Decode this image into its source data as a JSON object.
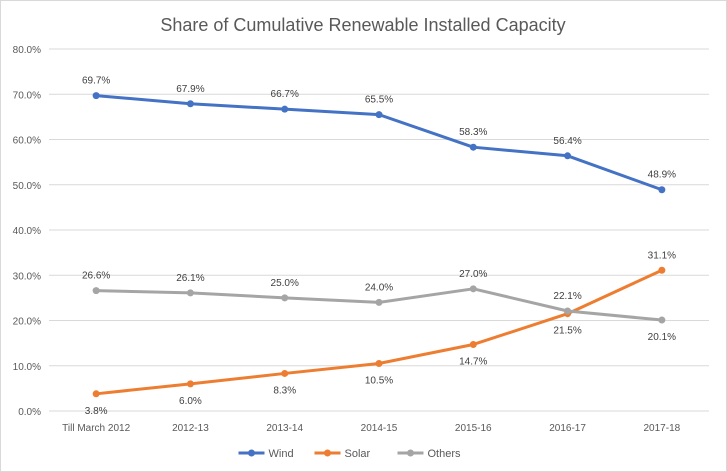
{
  "chart_data": {
    "type": "line",
    "title": "Share of Cumulative Renewable Installed Capacity",
    "categories": [
      "Till March 2012",
      "2012-13",
      "2013-14",
      "2014-15",
      "2015-16",
      "2016-17",
      "2017-18"
    ],
    "ylim": [
      0,
      80
    ],
    "y_ticks": [
      "0.0%",
      "10.0%",
      "20.0%",
      "30.0%",
      "40.0%",
      "50.0%",
      "60.0%",
      "70.0%",
      "80.0%"
    ],
    "grid": true,
    "legend_position": "bottom",
    "series": [
      {
        "name": "Wind",
        "color": "#4472c4",
        "values": [
          69.7,
          67.9,
          66.7,
          65.5,
          58.3,
          56.4,
          48.9
        ],
        "labels": [
          "69.7%",
          "67.9%",
          "66.7%",
          "65.5%",
          "58.3%",
          "56.4%",
          "48.9%"
        ]
      },
      {
        "name": "Solar",
        "color": "#ed7d31",
        "values": [
          3.8,
          6.0,
          8.3,
          10.5,
          14.7,
          21.5,
          31.1
        ],
        "labels": [
          "3.8%",
          "6.0%",
          "8.3%",
          "10.5%",
          "14.7%",
          "21.5%",
          "31.1%"
        ]
      },
      {
        "name": "Others",
        "color": "#a5a5a5",
        "values": [
          26.6,
          26.1,
          25.0,
          24.0,
          27.0,
          22.1,
          20.1
        ],
        "labels": [
          "26.6%",
          "26.1%",
          "25.0%",
          "24.0%",
          "27.0%",
          "22.1%",
          "20.1%"
        ]
      }
    ]
  }
}
